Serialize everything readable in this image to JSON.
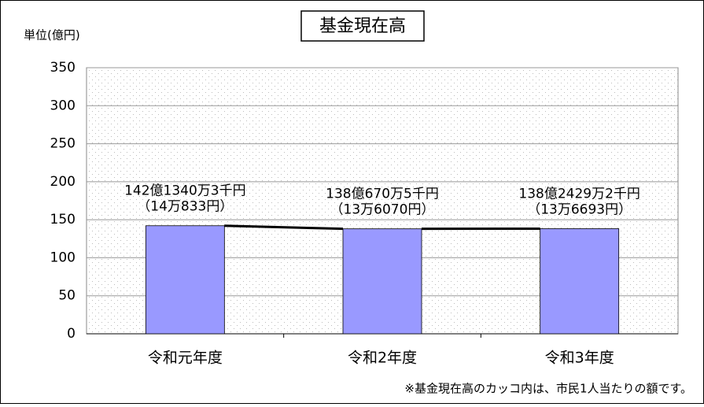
{
  "chart_data": {
    "type": "bar",
    "title": "基金現在高",
    "y_label": "単位(億円)",
    "categories": [
      "令和元年度",
      "令和2年度",
      "令和3年度"
    ],
    "values": [
      142.13403,
      138.06705,
      138.24292
    ],
    "value_labels": [
      "142億1340万3千円",
      "138億670万5千円",
      "138億2429万2千円"
    ],
    "per_capita_labels": [
      "（14万833円）",
      "（13万6070円）",
      "（13万6693円）"
    ],
    "color": "#9999ff",
    "ylim": [
      0,
      350
    ],
    "yticks": [
      0,
      50,
      100,
      150,
      200,
      250,
      300,
      350
    ],
    "grid": true,
    "series_lines": true,
    "note": "※基金現在高のカッコ内は、市民1人当たりの額です。"
  }
}
